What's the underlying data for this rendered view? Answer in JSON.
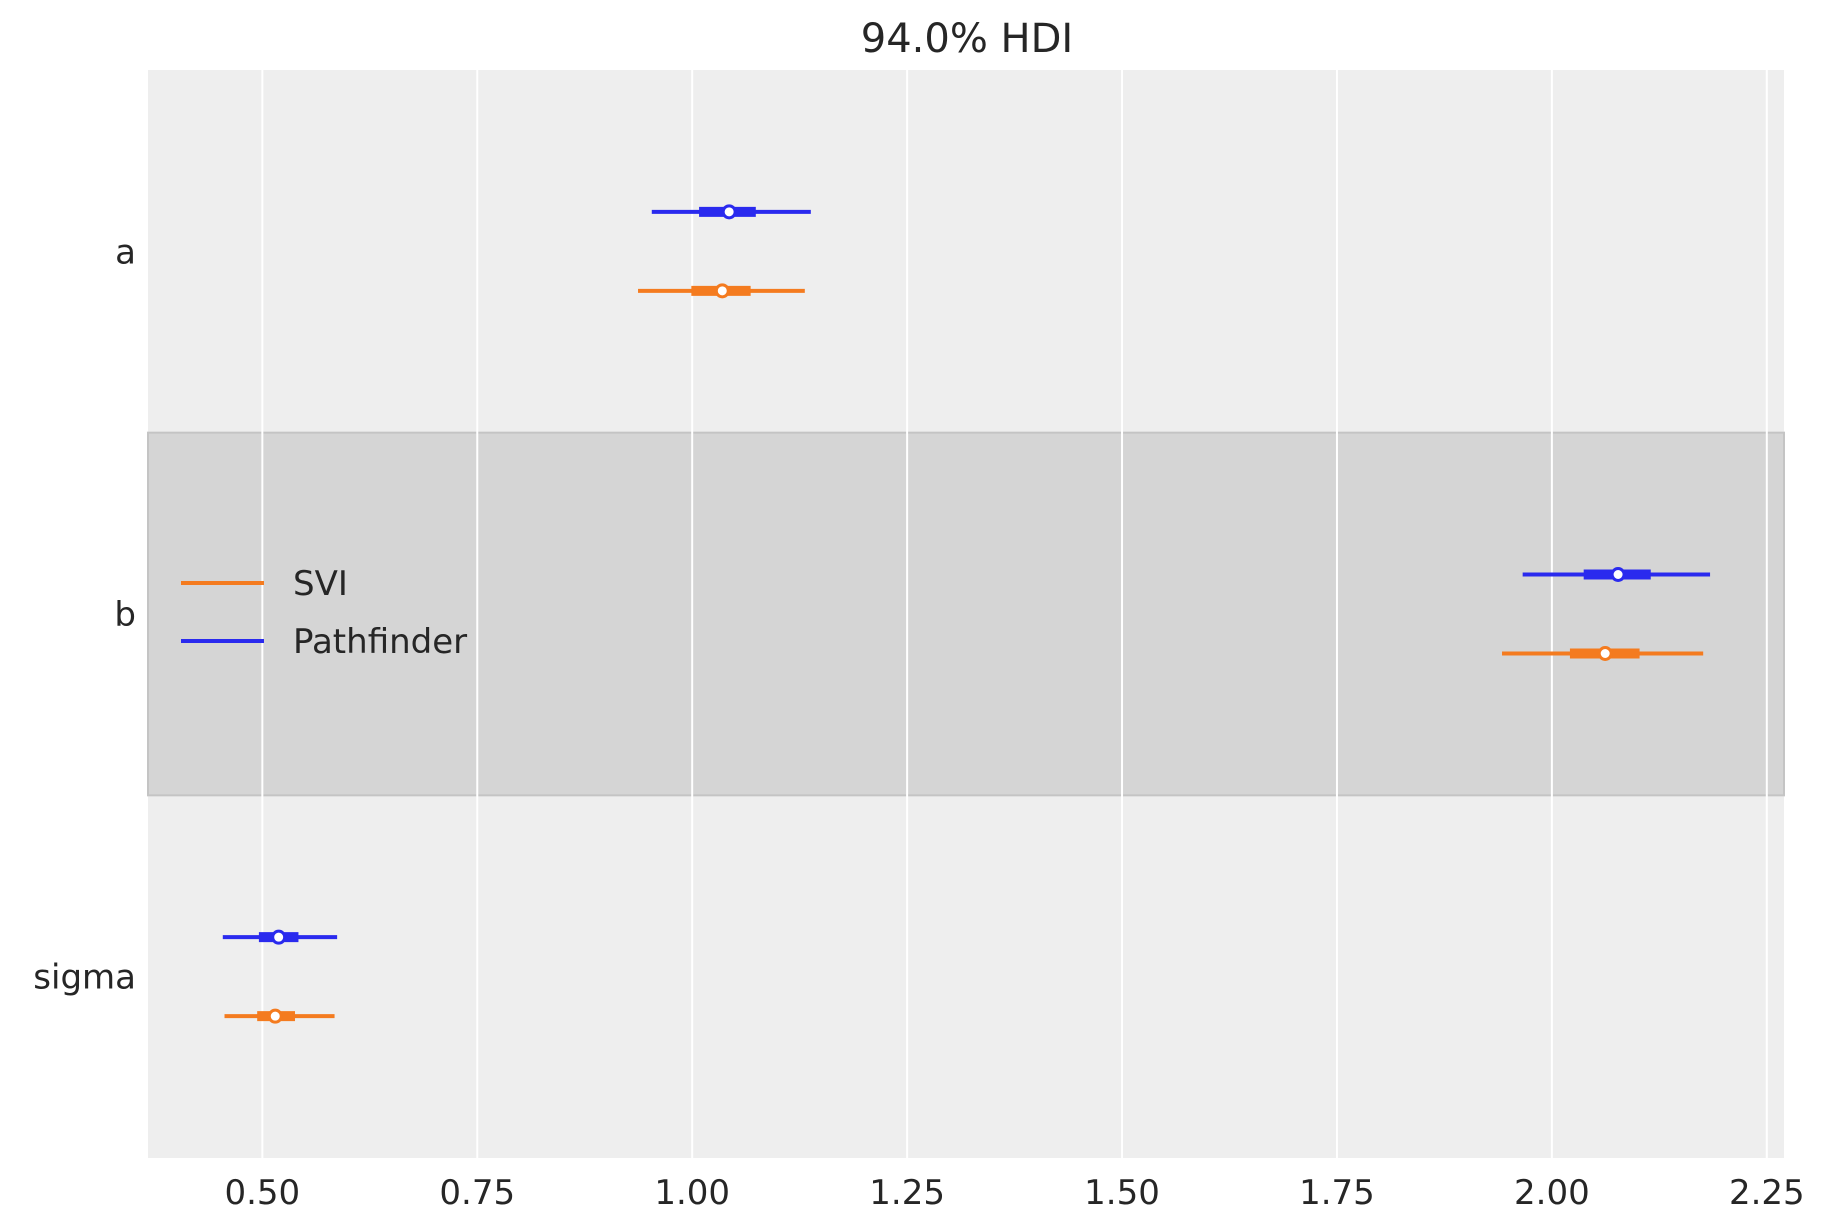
{
  "chart_data": {
    "type": "forest",
    "title": "94.0% HDI",
    "xlabel": "",
    "ylabel": "",
    "xlim": [
      0.367,
      2.27
    ],
    "x_ticks": [
      0.5,
      0.75,
      1.0,
      1.25,
      1.5,
      1.75,
      2.0,
      2.25
    ],
    "x_tick_labels": [
      "0.50",
      "0.75",
      "1.00",
      "1.25",
      "1.50",
      "1.75",
      "2.00",
      "2.25"
    ],
    "grid": true,
    "legend_position": "center-left",
    "parameters": [
      "a",
      "b",
      "sigma"
    ],
    "highlighted_parameter": "b",
    "series": [
      {
        "name": "SVI",
        "color": "#f47b1f",
        "estimates": [
          {
            "parameter": "a",
            "mean": 1.035,
            "iqr": [
              0.999,
              1.068
            ],
            "hdi_94": [
              0.937,
              1.131
            ]
          },
          {
            "parameter": "b",
            "mean": 2.062,
            "iqr": [
              2.021,
              2.102
            ],
            "hdi_94": [
              1.942,
              2.176
            ]
          },
          {
            "parameter": "sigma",
            "mean": 0.515,
            "iqr": [
              0.494,
              0.538
            ],
            "hdi_94": [
              0.456,
              0.584
            ]
          }
        ]
      },
      {
        "name": "Pathfinder",
        "color": "#2a2aee",
        "estimates": [
          {
            "parameter": "a",
            "mean": 1.043,
            "iqr": [
              1.008,
              1.074
            ],
            "hdi_94": [
              0.953,
              1.138
            ]
          },
          {
            "parameter": "b",
            "mean": 2.077,
            "iqr": [
              2.037,
              2.115
            ],
            "hdi_94": [
              1.966,
              2.184
            ]
          },
          {
            "parameter": "sigma",
            "mean": 0.519,
            "iqr": [
              0.496,
              0.542
            ],
            "hdi_94": [
              0.454,
              0.587
            ]
          }
        ]
      }
    ]
  }
}
